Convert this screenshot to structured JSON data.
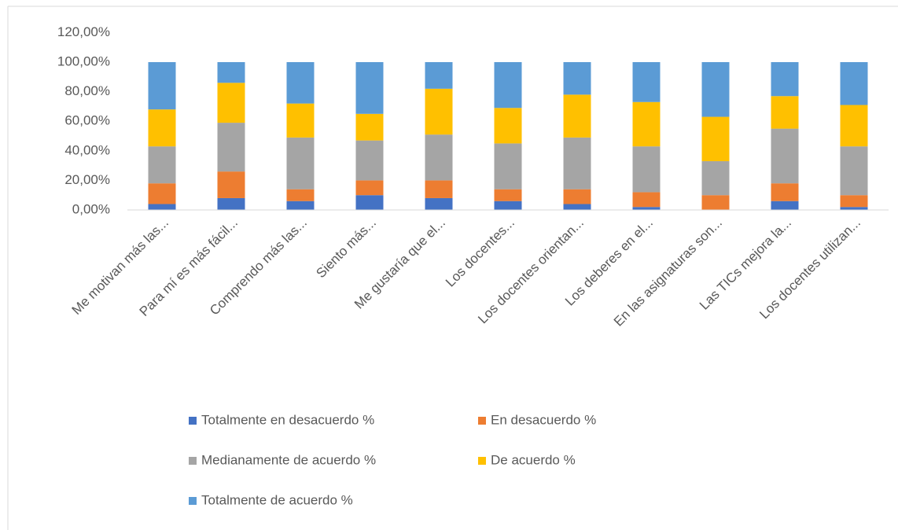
{
  "chart_data": {
    "type": "stacked_bar",
    "categories": [
      "Me motivan más las...",
      "Para mí es más fácil...",
      "Comprendo más las...",
      "Siento más...",
      "Me gustaría que el...",
      "Los docentes...",
      "Los docentes orientan...",
      "Los deberes en el...",
      "En las asignaturas son...",
      "Las TICs mejora la...",
      "Los docentes utilizan..."
    ],
    "series": [
      {
        "name": "Totalmente en desacuerdo %",
        "color": "#4472c4",
        "values": [
          4,
          8,
          6,
          10,
          8,
          6,
          4,
          2,
          0,
          6,
          2
        ]
      },
      {
        "name": "En desacuerdo %",
        "color": "#ed7d31",
        "values": [
          14,
          18,
          8,
          10,
          12,
          8,
          10,
          10,
          10,
          12,
          8
        ]
      },
      {
        "name": "Medianamente de acuerdo %",
        "color": "#a5a5a5",
        "values": [
          25,
          33,
          35,
          27,
          31,
          31,
          35,
          31,
          23,
          37,
          33
        ]
      },
      {
        "name": "De acuerdo %",
        "color": "#ffc000",
        "values": [
          25,
          27,
          23,
          18,
          31,
          24,
          29,
          30,
          30,
          22,
          28
        ]
      },
      {
        "name": "Totalmente de acuerdo %",
        "color": "#5b9bd5",
        "values": [
          32,
          14,
          28,
          35,
          18,
          31,
          22,
          27,
          37,
          23,
          29
        ]
      }
    ],
    "ylim": [
      0,
      120
    ],
    "yticks": [
      {
        "value": 0,
        "label": "0,00%"
      },
      {
        "value": 20,
        "label": "20,00%"
      },
      {
        "value": 40,
        "label": "40,00%"
      },
      {
        "value": 60,
        "label": "60,00%"
      },
      {
        "value": 80,
        "label": "80,00%"
      },
      {
        "value": 100,
        "label": "100,00%"
      },
      {
        "value": 120,
        "label": "120,00%"
      }
    ],
    "grid": false,
    "legend": "bottom"
  }
}
